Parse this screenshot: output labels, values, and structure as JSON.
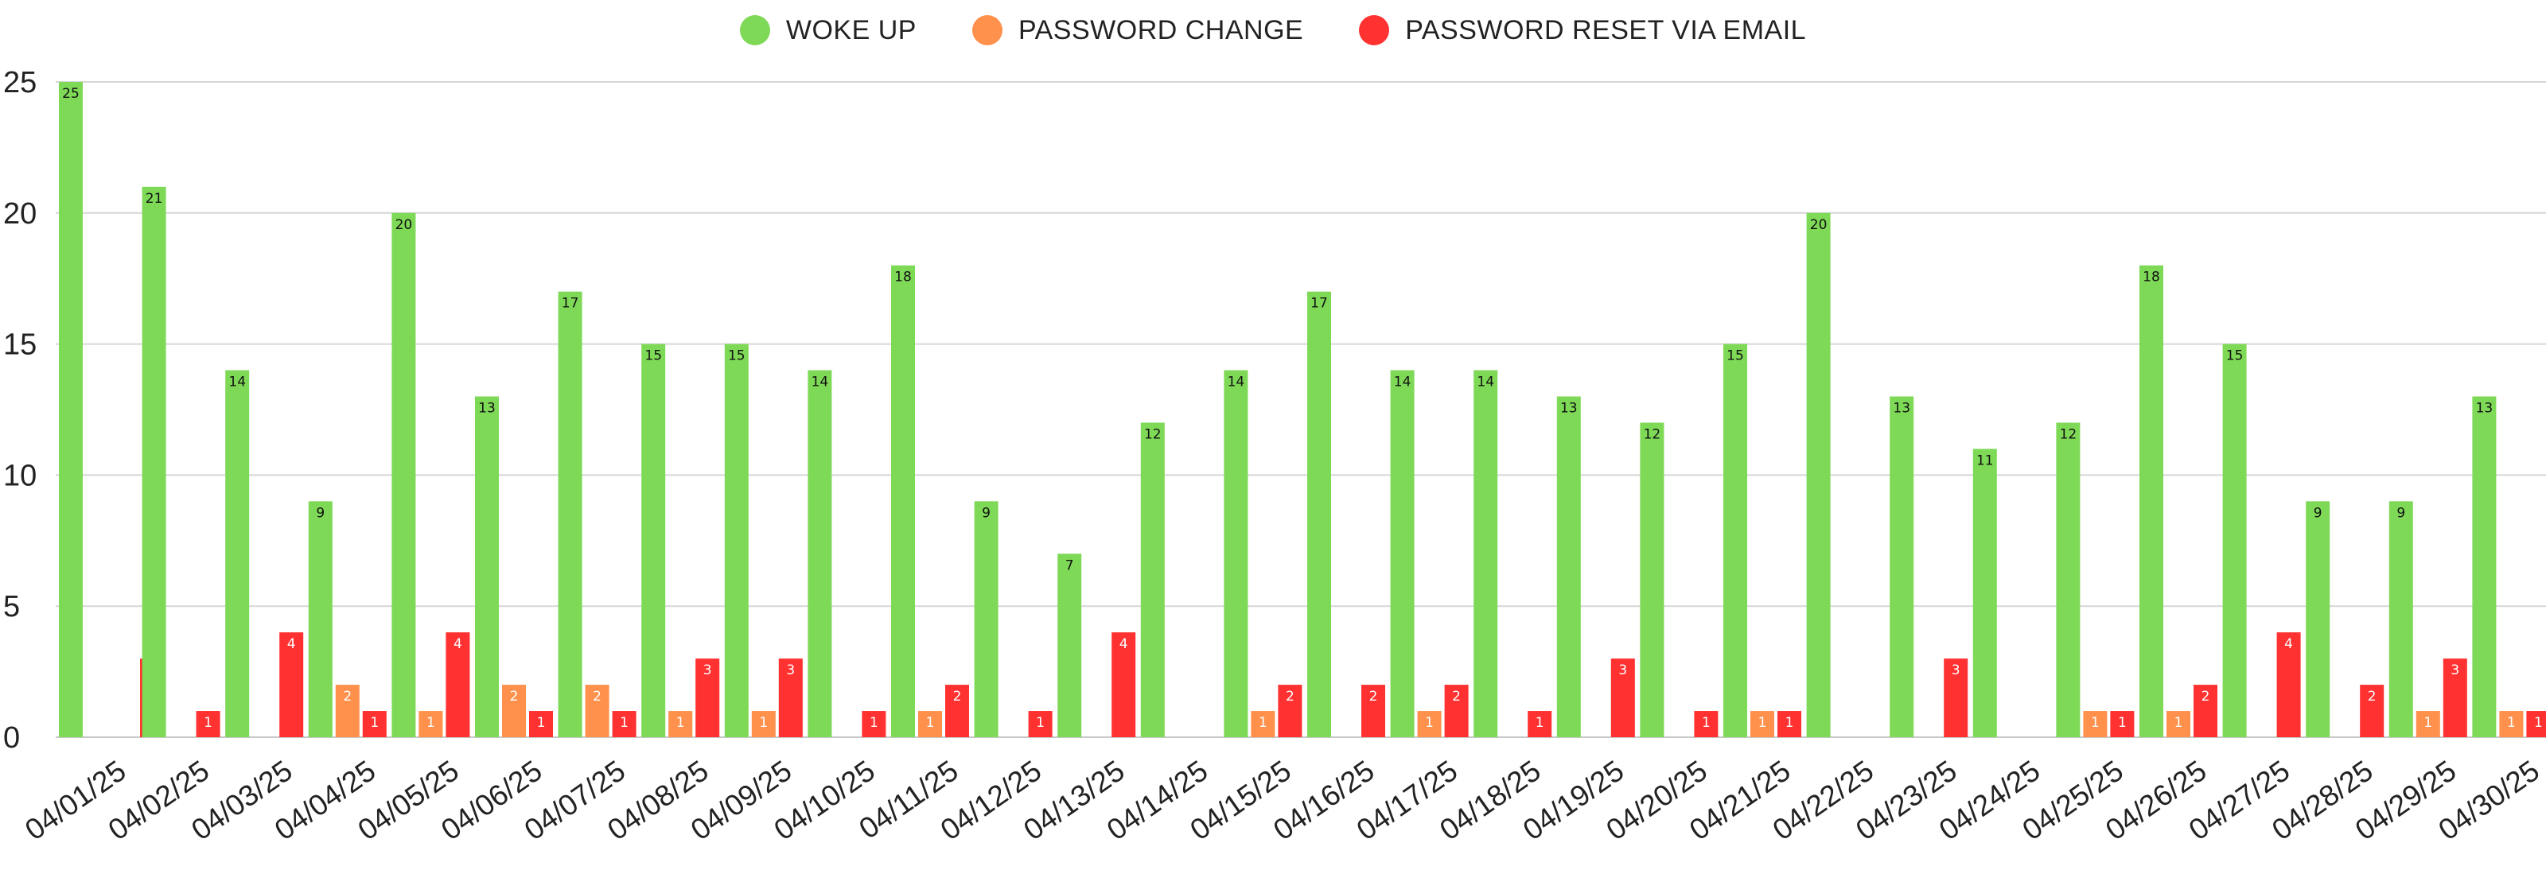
{
  "chart_data": {
    "type": "bar",
    "categories": [
      "04/01/25",
      "04/02/25",
      "04/03/25",
      "04/04/25",
      "04/05/25",
      "04/06/25",
      "04/07/25",
      "04/08/25",
      "04/09/25",
      "04/10/25",
      "04/11/25",
      "04/12/25",
      "04/13/25",
      "04/14/25",
      "04/15/25",
      "04/16/25",
      "04/17/25",
      "04/18/25",
      "04/19/25",
      "04/20/25",
      "04/21/25",
      "04/22/25",
      "04/23/25",
      "04/24/25",
      "04/25/25",
      "04/26/25",
      "04/27/25",
      "04/28/25",
      "04/29/25",
      "04/30/25"
    ],
    "series": [
      {
        "name": "WOKE UP",
        "color": "#7ED957",
        "values": [
          25,
          21,
          14,
          9,
          20,
          13,
          17,
          15,
          15,
          14,
          18,
          9,
          7,
          12,
          14,
          17,
          14,
          14,
          13,
          12,
          15,
          20,
          13,
          11,
          12,
          18,
          15,
          9,
          9,
          13
        ]
      },
      {
        "name": "PASSWORD CHANGE",
        "color": "#FF914D",
        "values": [
          0,
          0,
          0,
          2,
          1,
          2,
          2,
          1,
          1,
          0,
          1,
          0,
          0,
          0,
          1,
          0,
          1,
          0,
          0,
          0,
          1,
          0,
          0,
          0,
          1,
          1,
          0,
          0,
          1,
          1
        ]
      },
      {
        "name": "PASSWORD RESET VIA EMAIL",
        "color": "#FF3131",
        "values": [
          3,
          1,
          4,
          1,
          4,
          1,
          1,
          3,
          3,
          1,
          2,
          1,
          4,
          0,
          2,
          2,
          2,
          1,
          3,
          1,
          1,
          0,
          3,
          0,
          1,
          2,
          4,
          2,
          3,
          1
        ]
      }
    ],
    "first_category_offset": {
      "WOKE UP": 0,
      "PASSWORD CHANGE": 1,
      "PASSWORD RESET VIA EMAIL": 1
    },
    "ylim": [
      0,
      25
    ],
    "yticks": [
      0,
      5,
      10,
      15,
      20,
      25
    ],
    "grid": true,
    "legend": "top-center",
    "title": "",
    "xlabel": "",
    "ylabel": ""
  }
}
